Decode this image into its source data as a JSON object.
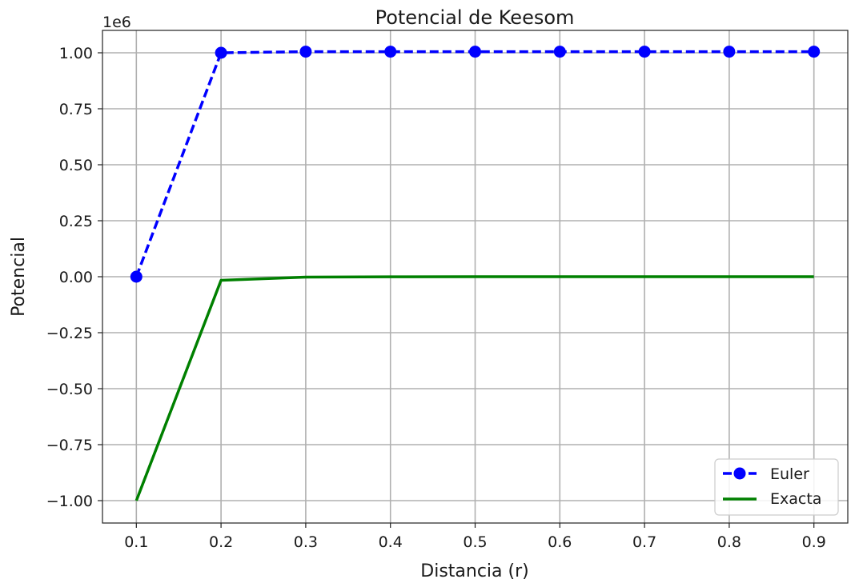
{
  "chart_data": {
    "type": "line",
    "title": "Potencial de Keesom",
    "xlabel": "Distancia (r)",
    "ylabel": "Potencial",
    "y_offset_label": "1e6",
    "xlim": [
      0.06,
      0.94
    ],
    "ylim": [
      -1.1,
      1.1
    ],
    "x_ticks": [
      0.1,
      0.2,
      0.3,
      0.4,
      0.5,
      0.6,
      0.7,
      0.8,
      0.9
    ],
    "x_tick_labels": [
      "0.1",
      "0.2",
      "0.3",
      "0.4",
      "0.5",
      "0.6",
      "0.7",
      "0.8",
      "0.9"
    ],
    "y_ticks": [
      -1.0,
      -0.75,
      -0.5,
      -0.25,
      0.0,
      0.25,
      0.5,
      0.75,
      1.0
    ],
    "y_tick_labels": [
      "−1.00",
      "−0.75",
      "−0.50",
      "−0.25",
      "0.00",
      "0.25",
      "0.50",
      "0.75",
      "1.00"
    ],
    "grid": true,
    "legend_position": "lower-right",
    "x": [
      0.1,
      0.2,
      0.3,
      0.4,
      0.5,
      0.6,
      0.7,
      0.8,
      0.9
    ],
    "series": [
      {
        "name": "Euler",
        "color": "#0000ff",
        "style": "dashed",
        "marker": "circle",
        "values": [
          0.0,
          1.0,
          1.005,
          1.005,
          1.005,
          1.005,
          1.005,
          1.005,
          1.005
        ]
      },
      {
        "name": "Exacta",
        "color": "#008000",
        "style": "solid",
        "marker": "none",
        "values": [
          -1.0,
          -0.016,
          -0.002,
          -0.0005,
          -0.0002,
          -0.0001,
          -5e-05,
          -3e-05,
          -2e-05
        ]
      }
    ]
  }
}
